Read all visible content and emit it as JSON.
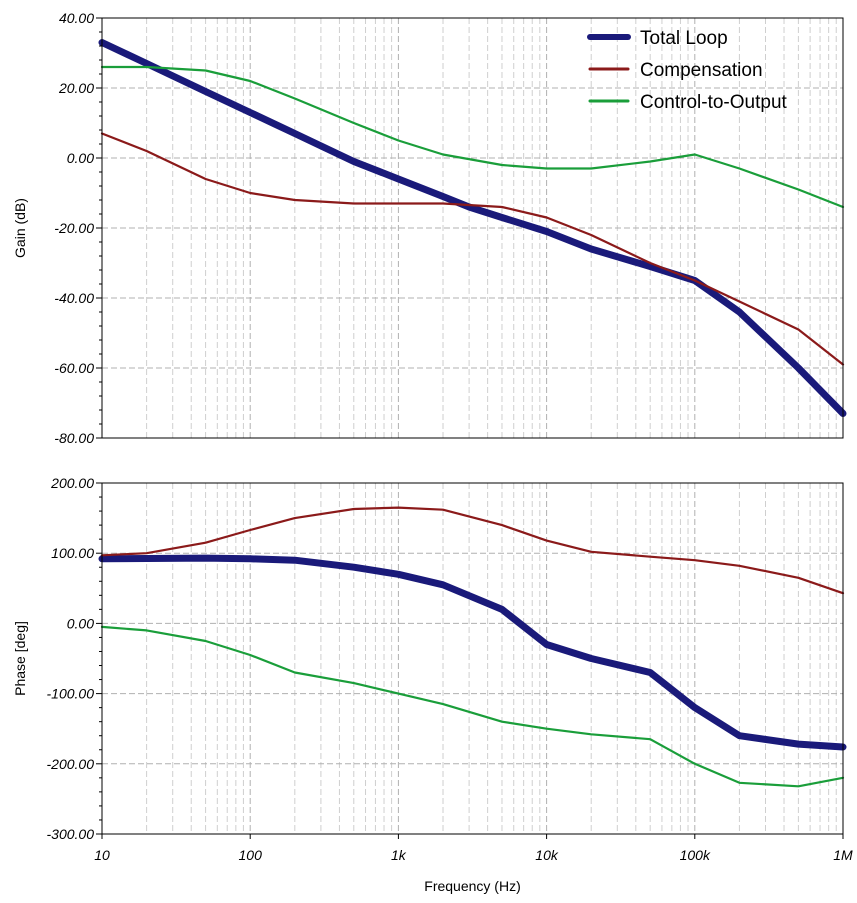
{
  "chart_data": [
    {
      "type": "line",
      "ylabel": "Gain (dB)",
      "xscale": "log",
      "xlim": [
        10,
        1000000
      ],
      "ylim": [
        -80,
        40
      ],
      "grid": true,
      "legend_position": "top-right",
      "yticks": [
        "40.00",
        "20.00",
        "0.00",
        "-20.00",
        "-40.00",
        "-60.00",
        "-80.00"
      ],
      "series": [
        {
          "name": "Total Loop",
          "color": "#1a1a7a",
          "x": [
            10,
            20,
            50,
            100,
            200,
            500,
            1000,
            2000,
            3000,
            5000,
            10000,
            20000,
            50000,
            100000,
            200000,
            500000,
            1000000
          ],
          "y": [
            33,
            27,
            19,
            13,
            7,
            -1,
            -6,
            -11,
            -14,
            -17,
            -21,
            -26,
            -31,
            -35,
            -44,
            -60,
            -73
          ]
        },
        {
          "name": "Compensation",
          "color": "#8b1a1a",
          "x": [
            10,
            20,
            50,
            100,
            200,
            500,
            1000,
            2000,
            5000,
            10000,
            20000,
            50000,
            100000,
            200000,
            500000,
            1000000
          ],
          "y": [
            7,
            2,
            -6,
            -10,
            -12,
            -13,
            -13,
            -13,
            -14,
            -17,
            -22,
            -30,
            -35,
            -41,
            -49,
            -59
          ]
        },
        {
          "name": "Control-to-Output",
          "color": "#1a9e3a",
          "x": [
            10,
            20,
            50,
            100,
            200,
            500,
            1000,
            2000,
            5000,
            10000,
            20000,
            50000,
            100000,
            200000,
            500000,
            1000000
          ],
          "y": [
            26,
            26,
            25,
            22,
            17,
            10,
            5,
            1,
            -2,
            -3,
            -3,
            -1,
            1,
            -3,
            -9,
            -14
          ]
        }
      ]
    },
    {
      "type": "line",
      "xlabel": "Frequency (Hz)",
      "ylabel": "Phase [deg]",
      "xscale": "log",
      "xlim": [
        10,
        1000000
      ],
      "ylim": [
        -300,
        200
      ],
      "grid": true,
      "xticks": [
        "10",
        "100",
        "1k",
        "10k",
        "100k",
        "1M"
      ],
      "yticks": [
        "200.00",
        "100.00",
        "0.00",
        "-100.00",
        "-200.00",
        "-300.00"
      ],
      "series": [
        {
          "name": "Total Loop",
          "color": "#1a1a7a",
          "x": [
            10,
            50,
            100,
            200,
            500,
            1000,
            2000,
            5000,
            10000,
            20000,
            50000,
            100000,
            200000,
            500000,
            1000000
          ],
          "y": [
            92,
            93,
            92,
            90,
            80,
            70,
            55,
            20,
            -30,
            -50,
            -70,
            -120,
            -160,
            -172,
            -176
          ]
        },
        {
          "name": "Compensation",
          "color": "#8b1a1a",
          "x": [
            10,
            20,
            50,
            100,
            200,
            500,
            1000,
            2000,
            5000,
            10000,
            20000,
            50000,
            100000,
            200000,
            500000,
            1000000
          ],
          "y": [
            97,
            100,
            115,
            133,
            150,
            163,
            165,
            162,
            140,
            118,
            102,
            95,
            90,
            82,
            65,
            43
          ]
        },
        {
          "name": "Control-to-Output",
          "color": "#1a9e3a",
          "x": [
            10,
            20,
            50,
            100,
            200,
            500,
            1000,
            2000,
            5000,
            10000,
            20000,
            50000,
            100000,
            200000,
            500000,
            1000000
          ],
          "y": [
            -5,
            -10,
            -25,
            -45,
            -70,
            -85,
            -100,
            -115,
            -140,
            -150,
            -158,
            -165,
            -200,
            -227,
            -232,
            -220
          ]
        }
      ]
    }
  ]
}
